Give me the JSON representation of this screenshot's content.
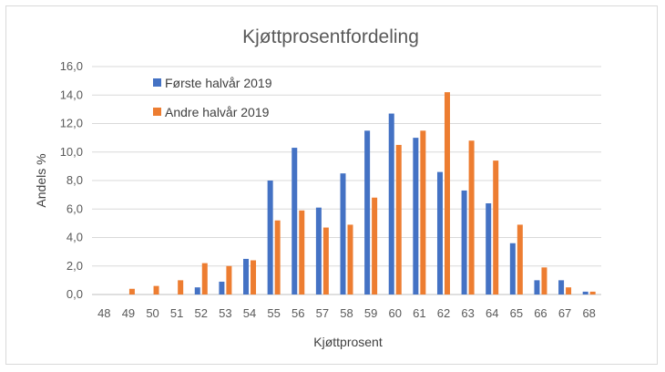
{
  "chart_data": {
    "type": "bar",
    "title": "Kjøttprosentfordeling",
    "xlabel": "Kjøttprosent",
    "ylabel": "Andels %",
    "ylim": [
      0,
      16
    ],
    "yticks": [
      "0,0",
      "2,0",
      "4,0",
      "6,0",
      "8,0",
      "10,0",
      "12,0",
      "14,0",
      "16,0"
    ],
    "grid": true,
    "legend_position": "top-left",
    "categories": [
      "48",
      "49",
      "50",
      "51",
      "52",
      "53",
      "54",
      "55",
      "56",
      "57",
      "58",
      "59",
      "60",
      "61",
      "62",
      "63",
      "64",
      "65",
      "66",
      "67",
      "68"
    ],
    "series": [
      {
        "name": "Første halvår 2019",
        "color": "#4472C4",
        "values": [
          0,
          0,
          0,
          0,
          0.5,
          0.9,
          2.5,
          8.0,
          10.3,
          6.1,
          8.5,
          11.5,
          12.7,
          11.0,
          8.6,
          7.3,
          6.4,
          3.6,
          1.0,
          1.0,
          0.2
        ]
      },
      {
        "name": "Andre halvår 2019",
        "color": "#ED7D31",
        "values": [
          0,
          0.4,
          0.6,
          1.0,
          2.2,
          2.0,
          2.4,
          5.2,
          5.9,
          4.7,
          4.9,
          6.8,
          10.5,
          11.5,
          14.2,
          10.8,
          9.4,
          4.9,
          1.9,
          0.5,
          0.2
        ]
      }
    ]
  }
}
